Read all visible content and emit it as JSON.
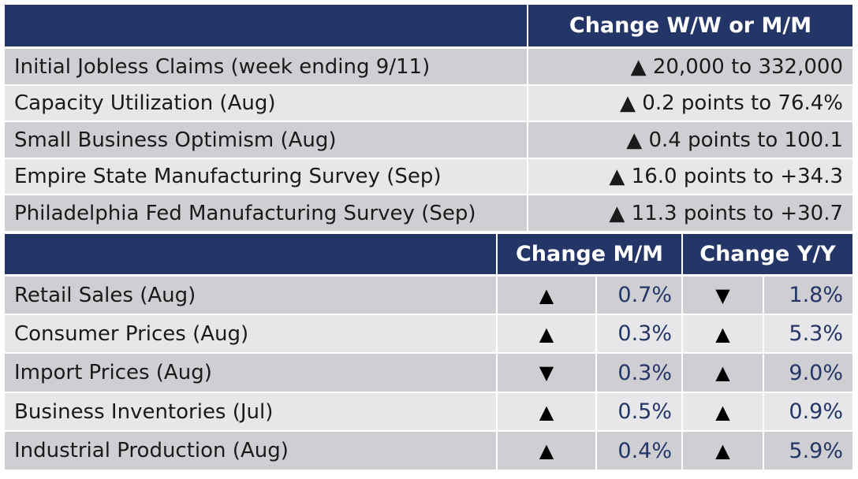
{
  "top_table": {
    "header": "Change W/W or M/M",
    "rows": [
      {
        "label": "Initial Jobless Claims (week ending 9/11)",
        "change": "▲ 20,000 to 332,000"
      },
      {
        "label": "Capacity Utilization (Aug)",
        "change": "▲ 0.2 points to 76.4%"
      },
      {
        "label": "Small Business Optimism (Aug)",
        "change": "▲ 0.4 points to 100.1"
      },
      {
        "label": "Empire State Manufacturing Survey (Sep)",
        "change": "▲ 16.0 points to +34.3"
      },
      {
        "label": "Philadelphia Fed Manufacturing Survey (Sep)",
        "change": "▲ 11.3 points to +30.7"
      }
    ]
  },
  "bottom_table": {
    "header_mm": "Change M/M",
    "header_yy": "Change Y/Y",
    "rows": [
      {
        "label": "Retail Sales (Aug)",
        "mm_dir": "▲",
        "mm": "0.7%",
        "yy_dir": "▼",
        "yy": "1.8%"
      },
      {
        "label": "Consumer Prices (Aug)",
        "mm_dir": "▲",
        "mm": "0.3%",
        "yy_dir": "▲",
        "yy": "5.3%"
      },
      {
        "label": "Import Prices (Aug)",
        "mm_dir": "▼",
        "mm": "0.3%",
        "yy_dir": "▲",
        "yy": "9.0%"
      },
      {
        "label": "Business Inventories (Jul)",
        "mm_dir": "▲",
        "mm": "0.5%",
        "yy_dir": "▲",
        "yy": "0.9%"
      },
      {
        "label": "Industrial Production (Aug)",
        "mm_dir": "▲",
        "mm": "0.4%",
        "yy_dir": "▲",
        "yy": "5.9%"
      }
    ]
  },
  "colors": {
    "header_bg": "#243567",
    "row_dark": "#cfcfd3",
    "row_light": "#e7e7ea",
    "value_text": "#243567"
  }
}
